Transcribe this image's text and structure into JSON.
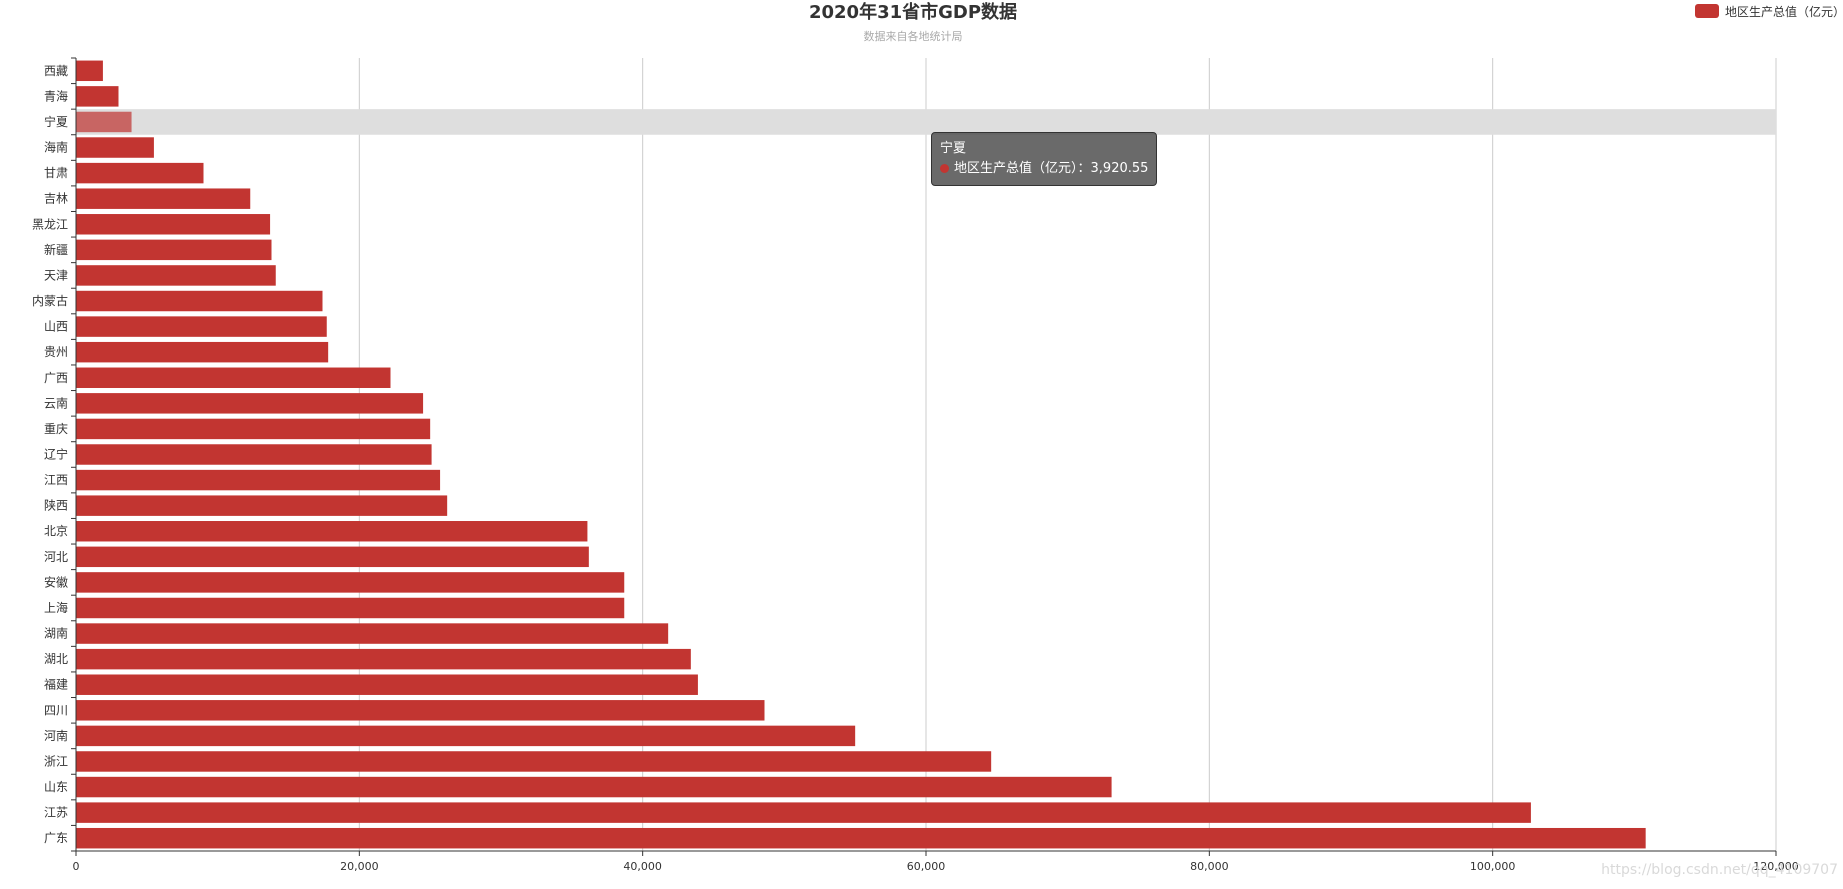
{
  "colors": {
    "bar": "#c23531",
    "bar_highlight": "#c86563",
    "axis": "#333333",
    "grid": "#cccccc",
    "hover_band": "#dedede"
  },
  "watermark": "https://blog.csdn.net/qq_4109707",
  "tooltip": {
    "category": "宁夏",
    "series_name": "地区生产总值（亿元）",
    "separator": "：",
    "value_text": "3,920.55"
  },
  "chart_data": {
    "type": "bar",
    "orientation": "horizontal",
    "title": "2020年31省市GDP数据",
    "subtitle": "数据来自各地统计局",
    "legend_position": "top-right",
    "grid": true,
    "xlim": [
      0,
      120000
    ],
    "x_ticks": [
      0,
      20000,
      40000,
      60000,
      80000,
      100000,
      120000
    ],
    "x_tick_labels": [
      "0",
      "20,000",
      "40,000",
      "60,000",
      "80,000",
      "100,000",
      "120,000"
    ],
    "highlighted_category": "宁夏",
    "categories": [
      "西藏",
      "青海",
      "宁夏",
      "海南",
      "甘肃",
      "吉林",
      "黑龙江",
      "新疆",
      "天津",
      "内蒙古",
      "山西",
      "贵州",
      "广西",
      "云南",
      "重庆",
      "辽宁",
      "江西",
      "陕西",
      "北京",
      "河北",
      "安徽",
      "上海",
      "湖南",
      "湖北",
      "福建",
      "四川",
      "河南",
      "浙江",
      "山东",
      "江苏",
      "广东"
    ],
    "series": [
      {
        "name": "地区生产总值（亿元）",
        "values": [
          1900,
          3000,
          3920.55,
          5500,
          9000,
          12300,
          13700,
          13800,
          14100,
          17400,
          17700,
          17800,
          22200,
          24500,
          25000,
          25100,
          25700,
          26200,
          36100,
          36200,
          38700,
          38700,
          41800,
          43400,
          43900,
          48600,
          55000,
          64600,
          73100,
          102700,
          110800
        ]
      }
    ]
  }
}
